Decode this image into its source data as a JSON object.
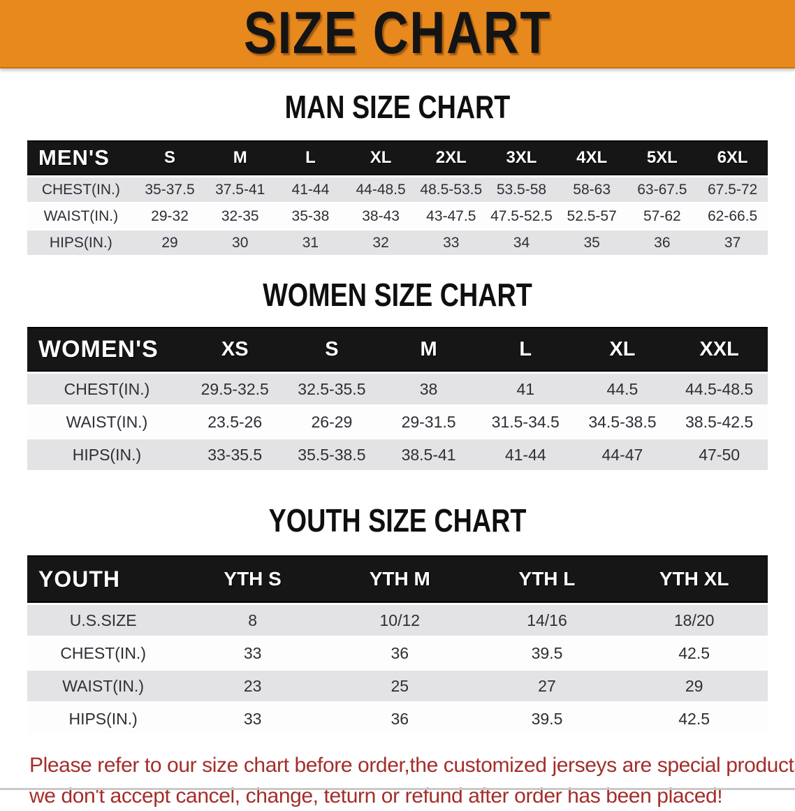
{
  "banner": {
    "title": "SIZE CHART",
    "bg_color": "#E8891E"
  },
  "colors": {
    "accent_orange": "#E8891E",
    "table_header_black": "#161616",
    "row_gray": "#e3e3e5",
    "row_white": "#fdfdfd",
    "note_red": "#A32E2A"
  },
  "sections": [
    {
      "heading": "MAN SIZE CHART",
      "table": {
        "name": "mens-size-table",
        "label": "MEN'S",
        "columns": [
          "S",
          "M",
          "L",
          "XL",
          "2XL",
          "3XL",
          "4XL",
          "5XL",
          "6XL"
        ],
        "rows": [
          {
            "label": "CHEST(IN.)",
            "values": [
              "35-37.5",
              "37.5-41",
              "41-44",
              "44-48.5",
              "48.5-53.5",
              "53.5-58",
              "58-63",
              "63-67.5",
              "67.5-72"
            ]
          },
          {
            "label": "WAIST(IN.)",
            "values": [
              "29-32",
              "32-35",
              "35-38",
              "38-43",
              "43-47.5",
              "47.5-52.5",
              "52.5-57",
              "57-62",
              "62-66.5"
            ]
          },
          {
            "label": "HIPS(IN.)",
            "values": [
              "29",
              "30",
              "31",
              "32",
              "33",
              "34",
              "35",
              "36",
              "37"
            ]
          }
        ]
      }
    },
    {
      "heading": "WOMEN SIZE CHART",
      "table": {
        "name": "womens-size-table",
        "label": "WOMEN'S",
        "columns": [
          "XS",
          "S",
          "M",
          "L",
          "XL",
          "XXL"
        ],
        "rows": [
          {
            "label": "CHEST(IN.)",
            "values": [
              "29.5-32.5",
              "32.5-35.5",
              "38",
              "41",
              "44.5",
              "44.5-48.5"
            ]
          },
          {
            "label": "WAIST(IN.)",
            "values": [
              "23.5-26",
              "26-29",
              "29-31.5",
              "31.5-34.5",
              "34.5-38.5",
              "38.5-42.5"
            ]
          },
          {
            "label": "HIPS(IN.)",
            "values": [
              "33-35.5",
              "35.5-38.5",
              "38.5-41",
              "41-44",
              "44-47",
              "47-50"
            ]
          }
        ]
      }
    },
    {
      "heading": "YOUTH SIZE CHART",
      "table": {
        "name": "youth-size-table",
        "label": "YOUTH",
        "columns": [
          "YTH S",
          "YTH M",
          "YTH L",
          "YTH XL"
        ],
        "rows": [
          {
            "label": "U.S.SIZE",
            "values": [
              "8",
              "10/12",
              "14/16",
              "18/20"
            ]
          },
          {
            "label": "CHEST(IN.)",
            "values": [
              "33",
              "36",
              "39.5",
              "42.5"
            ]
          },
          {
            "label": "WAIST(IN.)",
            "values": [
              "23",
              "25",
              "27",
              "29"
            ]
          },
          {
            "label": "HIPS(IN.)",
            "values": [
              "33",
              "36",
              "39.5",
              "42.5"
            ]
          }
        ]
      }
    }
  ],
  "footer": {
    "line1": "Please refer to our size chart before order,the customized jerseys are special products,",
    "line2": "we don't accept cancel, change, teturn or refund after order has been placed!"
  }
}
